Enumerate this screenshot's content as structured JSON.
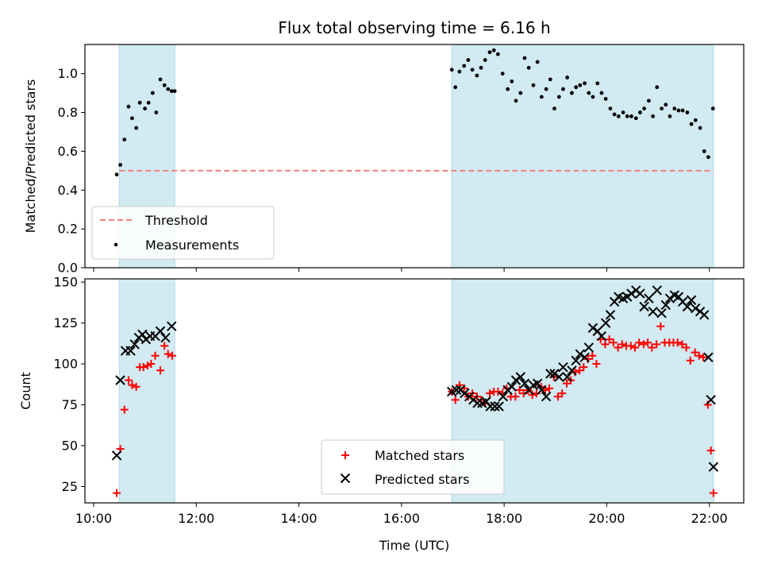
{
  "chart_data": {
    "title": "Flux total observing time = 6.16 h",
    "xlabel": "Time (UTC)",
    "x_ticks": [
      "10:00",
      "12:00",
      "14:00",
      "16:00",
      "18:00",
      "20:00",
      "22:00"
    ],
    "x_tick_hours": [
      10,
      12,
      14,
      16,
      18,
      20,
      22
    ],
    "xlim_hours": [
      9.83,
      22.67
    ],
    "observing_windows_hours": [
      [
        10.5,
        11.58
      ],
      [
        16.98,
        22.08
      ]
    ],
    "window_color": "#add8e6",
    "panels": [
      {
        "type": "scatter",
        "ylabel": "Matched/Predicted stars",
        "ylim": [
          0,
          1.15
        ],
        "y_ticks": [
          0.0,
          0.2,
          0.4,
          0.6,
          0.8,
          1.0
        ],
        "y_tick_labels": [
          "0.0",
          "0.2",
          "0.4",
          "0.6",
          "0.8",
          "1.0"
        ],
        "threshold": {
          "name": "Threshold",
          "value": 0.5,
          "color": "#f08080",
          "x_range_hours": [
            10.5,
            22.08
          ]
        },
        "series": [
          {
            "name": "Measurements",
            "color": "#000000",
            "marker": "dot",
            "x": [
              10.45,
              10.52,
              10.6,
              10.68,
              10.75,
              10.83,
              10.9,
              11.0,
              11.07,
              11.15,
              11.22,
              11.3,
              11.38,
              11.45,
              11.52,
              11.58,
              16.98,
              17.05,
              17.13,
              17.22,
              17.3,
              17.38,
              17.47,
              17.55,
              17.63,
              17.72,
              17.8,
              17.88,
              17.97,
              18.07,
              18.15,
              18.23,
              18.32,
              18.4,
              18.48,
              18.57,
              18.65,
              18.73,
              18.82,
              18.9,
              18.98,
              19.07,
              19.15,
              19.23,
              19.32,
              19.4,
              19.48,
              19.57,
              19.65,
              19.73,
              19.82,
              19.9,
              19.98,
              20.07,
              20.15,
              20.23,
              20.32,
              20.4,
              20.48,
              20.57,
              20.65,
              20.73,
              20.82,
              20.9,
              20.98,
              21.07,
              21.15,
              21.23,
              21.32,
              21.4,
              21.48,
              21.57,
              21.65,
              21.73,
              21.82,
              21.9,
              21.98,
              22.07
            ],
            "y": [
              0.48,
              0.53,
              0.66,
              0.83,
              0.77,
              0.72,
              0.85,
              0.82,
              0.85,
              0.9,
              0.8,
              0.97,
              0.94,
              0.92,
              0.91,
              0.91,
              1.02,
              0.93,
              1.01,
              1.04,
              1.07,
              1.02,
              0.99,
              1.03,
              1.07,
              1.11,
              1.12,
              1.1,
              1.0,
              0.92,
              0.96,
              0.86,
              0.9,
              1.08,
              1.03,
              0.94,
              1.06,
              0.88,
              0.92,
              0.97,
              0.82,
              0.88,
              0.92,
              0.98,
              0.9,
              0.93,
              0.94,
              0.95,
              0.9,
              0.88,
              0.95,
              0.9,
              0.87,
              0.82,
              0.79,
              0.78,
              0.8,
              0.78,
              0.78,
              0.77,
              0.8,
              0.82,
              0.86,
              0.78,
              0.93,
              0.82,
              0.84,
              0.78,
              0.82,
              0.81,
              0.81,
              0.8,
              0.74,
              0.76,
              0.72,
              0.6,
              0.57,
              0.82
            ]
          }
        ]
      },
      {
        "type": "scatter",
        "ylabel": "Count",
        "ylim": [
          15,
          152
        ],
        "y_ticks": [
          25,
          50,
          75,
          100,
          125,
          150
        ],
        "y_tick_labels": [
          "25",
          "50",
          "75",
          "100",
          "125",
          "150"
        ],
        "series": [
          {
            "name": "Matched stars",
            "color": "#ff0000",
            "marker": "plus",
            "x": [
              10.45,
              10.52,
              10.6,
              10.68,
              10.75,
              10.83,
              10.9,
              10.97,
              11.05,
              11.12,
              11.2,
              11.3,
              11.38,
              11.45,
              11.53,
              16.98,
              17.05,
              17.13,
              17.22,
              17.3,
              17.38,
              17.47,
              17.55,
              17.63,
              17.72,
              17.8,
              17.88,
              17.97,
              18.05,
              18.13,
              18.22,
              18.3,
              18.38,
              18.47,
              18.55,
              18.63,
              18.72,
              18.8,
              18.88,
              18.97,
              19.05,
              19.13,
              19.22,
              19.3,
              19.38,
              19.47,
              19.55,
              19.63,
              19.72,
              19.8,
              19.88,
              19.97,
              20.05,
              20.13,
              20.22,
              20.3,
              20.38,
              20.47,
              20.55,
              20.63,
              20.72,
              20.8,
              20.88,
              20.97,
              21.05,
              21.13,
              21.22,
              21.3,
              21.38,
              21.47,
              21.55,
              21.63,
              21.72,
              21.8,
              21.88,
              21.97,
              22.03,
              22.08
            ],
            "y": [
              21,
              48,
              72,
              90,
              87,
              86,
              98,
              98,
              99,
              100,
              105,
              96,
              111,
              106,
              105,
              83,
              78,
              87,
              85,
              80,
              82,
              80,
              78,
              76,
              82,
              83,
              83,
              82,
              85,
              80,
              80,
              84,
              82,
              84,
              81,
              82,
              86,
              84,
              85,
              92,
              80,
              82,
              88,
              90,
              95,
              96,
              98,
              103,
              105,
              100,
              115,
              112,
              115,
              113,
              110,
              112,
              111,
              111,
              110,
              113,
              112,
              113,
              110,
              112,
              123,
              113,
              113,
              113,
              113,
              112,
              110,
              102,
              107,
              105,
              104,
              75,
              47,
              21
            ]
          },
          {
            "name": "Predicted stars",
            "color": "#000000",
            "marker": "x",
            "x": [
              10.45,
              10.52,
              10.62,
              10.72,
              10.8,
              10.88,
              10.95,
              11.02,
              11.1,
              11.2,
              11.3,
              11.4,
              11.52,
              16.98,
              17.07,
              17.15,
              17.23,
              17.32,
              17.4,
              17.48,
              17.57,
              17.65,
              17.73,
              17.82,
              17.9,
              17.98,
              18.07,
              18.15,
              18.23,
              18.32,
              18.4,
              18.48,
              18.57,
              18.65,
              18.73,
              18.82,
              18.9,
              18.98,
              19.07,
              19.15,
              19.23,
              19.32,
              19.4,
              19.48,
              19.57,
              19.65,
              19.73,
              19.82,
              19.9,
              19.98,
              20.07,
              20.15,
              20.23,
              20.32,
              20.4,
              20.48,
              20.57,
              20.65,
              20.73,
              20.82,
              20.9,
              20.98,
              21.07,
              21.15,
              21.23,
              21.32,
              21.4,
              21.48,
              21.57,
              21.65,
              21.73,
              21.82,
              21.9,
              21.98,
              22.03,
              22.08
            ],
            "y": [
              44,
              90,
              108,
              108,
              112,
              116,
              118,
              115,
              117,
              117,
              120,
              116,
              123,
              83,
              84,
              84,
              82,
              80,
              78,
              76,
              76,
              77,
              74,
              74,
              74,
              80,
              84,
              86,
              90,
              92,
              88,
              84,
              87,
              88,
              84,
              80,
              94,
              94,
              92,
              98,
              92,
              96,
              102,
              106,
              104,
              110,
              122,
              120,
              117,
              125,
              130,
              138,
              141,
              140,
              141,
              143,
              145,
              143,
              135,
              140,
              132,
              145,
              131,
              136,
              140,
              142,
              141,
              138,
              135,
              139,
              134,
              132,
              130,
              104,
              78,
              37
            ]
          }
        ]
      }
    ]
  }
}
